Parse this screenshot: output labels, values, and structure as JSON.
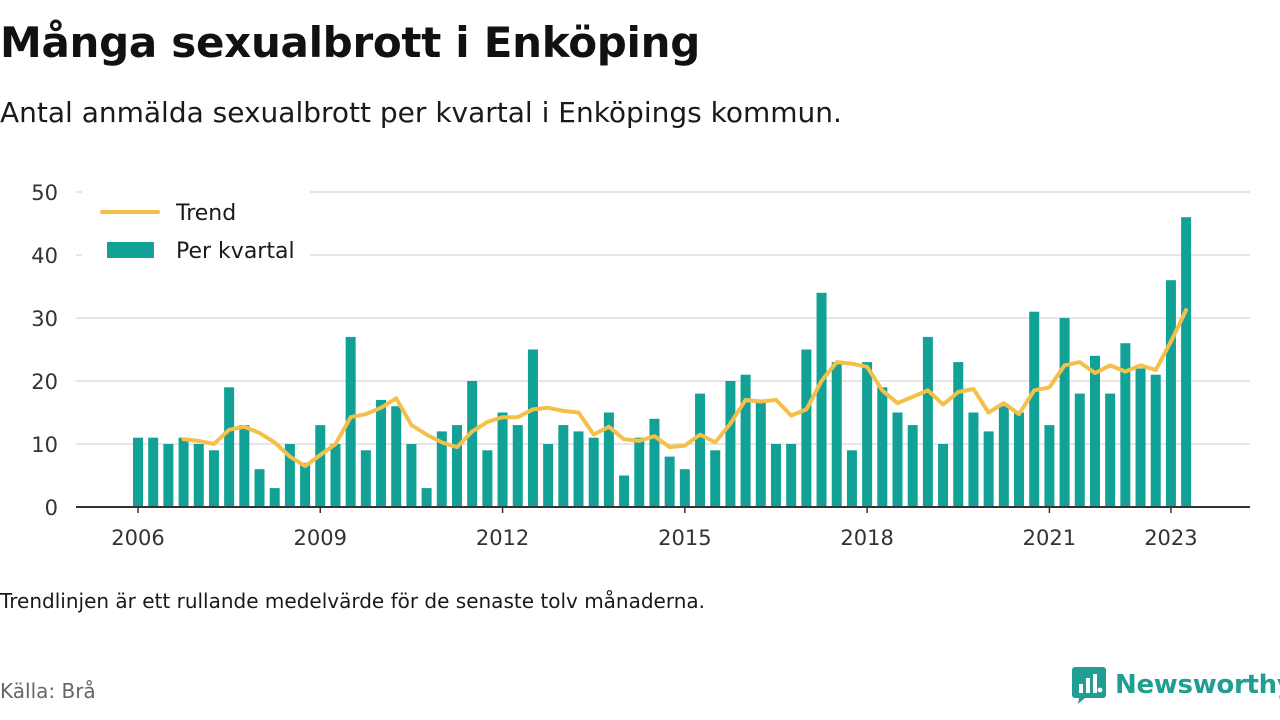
{
  "header": {
    "title": "Många sexualbrott i Enköping",
    "subtitle": "Antal anmälda sexualbrott per kvartal i Enköpings kommun."
  },
  "footer": {
    "note": "Trendlinjen är ett rullande medelvärde för de senaste tolv månaderna.",
    "source": "Källa: Brå",
    "brand": "Newsworthy"
  },
  "colors": {
    "bars": "#12a196",
    "trend": "#f5c04a",
    "grid": "#dedede",
    "axis": "#333333",
    "brand": "#1f9e91"
  },
  "chart_data": {
    "type": "bar",
    "legend": [
      "Trend",
      "Per kvartal"
    ],
    "legend_position": "top-left",
    "grid": true,
    "ylim": [
      0,
      50
    ],
    "yticks": [
      0,
      10,
      20,
      30,
      40,
      50
    ],
    "xticks": [
      "2006",
      "2009",
      "2012",
      "2015",
      "2018",
      "2021",
      "2023"
    ],
    "categories": [
      "2006 Q1",
      "2006 Q2",
      "2006 Q3",
      "2006 Q4",
      "2007 Q1",
      "2007 Q2",
      "2007 Q3",
      "2007 Q4",
      "2008 Q1",
      "2008 Q2",
      "2008 Q3",
      "2008 Q4",
      "2009 Q1",
      "2009 Q2",
      "2009 Q3",
      "2009 Q4",
      "2010 Q1",
      "2010 Q2",
      "2010 Q3",
      "2010 Q4",
      "2011 Q1",
      "2011 Q2",
      "2011 Q3",
      "2011 Q4",
      "2012 Q1",
      "2012 Q2",
      "2012 Q3",
      "2012 Q4",
      "2013 Q1",
      "2013 Q2",
      "2013 Q3",
      "2013 Q4",
      "2014 Q1",
      "2014 Q2",
      "2014 Q3",
      "2014 Q4",
      "2015 Q1",
      "2015 Q2",
      "2015 Q3",
      "2015 Q4",
      "2016 Q1",
      "2016 Q2",
      "2016 Q3",
      "2016 Q4",
      "2017 Q1",
      "2017 Q2",
      "2017 Q3",
      "2017 Q4",
      "2018 Q1",
      "2018 Q2",
      "2018 Q3",
      "2018 Q4",
      "2019 Q1",
      "2019 Q2",
      "2019 Q3",
      "2019 Q4",
      "2020 Q1",
      "2020 Q2",
      "2020 Q3",
      "2020 Q4",
      "2021 Q1",
      "2021 Q2",
      "2021 Q3",
      "2021 Q4",
      "2022 Q1",
      "2022 Q2",
      "2022 Q3",
      "2022 Q4",
      "2023 Q1",
      "2023 Q2"
    ],
    "series": [
      {
        "name": "Per kvartal",
        "type": "bar",
        "values": [
          11,
          11,
          10,
          11,
          10,
          9,
          19,
          13,
          6,
          3,
          10,
          7,
          13,
          10,
          27,
          9,
          17,
          16,
          10,
          3,
          12,
          13,
          20,
          9,
          15,
          13,
          25,
          10,
          13,
          12,
          11,
          15,
          5,
          11,
          14,
          8,
          6,
          18,
          9,
          20,
          21,
          17,
          10,
          10,
          25,
          34,
          23,
          9,
          23,
          19,
          15,
          13,
          27,
          10,
          23,
          15,
          12,
          16,
          15,
          31,
          13,
          30,
          18,
          24,
          18,
          26,
          22,
          21,
          36,
          46
        ]
      },
      {
        "name": "Trend",
        "type": "line",
        "values": [
          null,
          null,
          null,
          10.75,
          10.5,
          10.0,
          12.25,
          12.75,
          11.75,
          10.25,
          8.0,
          6.5,
          8.25,
          10.0,
          14.25,
          14.75,
          15.75,
          17.25,
          13.0,
          11.5,
          10.25,
          9.5,
          12.0,
          13.5,
          14.25,
          14.25,
          15.5,
          15.75,
          15.25,
          15.0,
          11.5,
          12.75,
          10.75,
          10.5,
          11.25,
          9.5,
          9.75,
          11.5,
          10.25,
          13.25,
          17.0,
          16.75,
          17.0,
          14.5,
          15.5,
          20.0,
          23.0,
          22.75,
          22.25,
          18.5,
          16.5,
          17.5,
          18.5,
          16.25,
          18.25,
          18.75,
          15.0,
          16.5,
          14.75,
          18.5,
          19.0,
          22.5,
          23.0,
          21.25,
          22.5,
          21.5,
          22.5,
          21.75,
          26.25,
          31.25
        ]
      }
    ]
  }
}
